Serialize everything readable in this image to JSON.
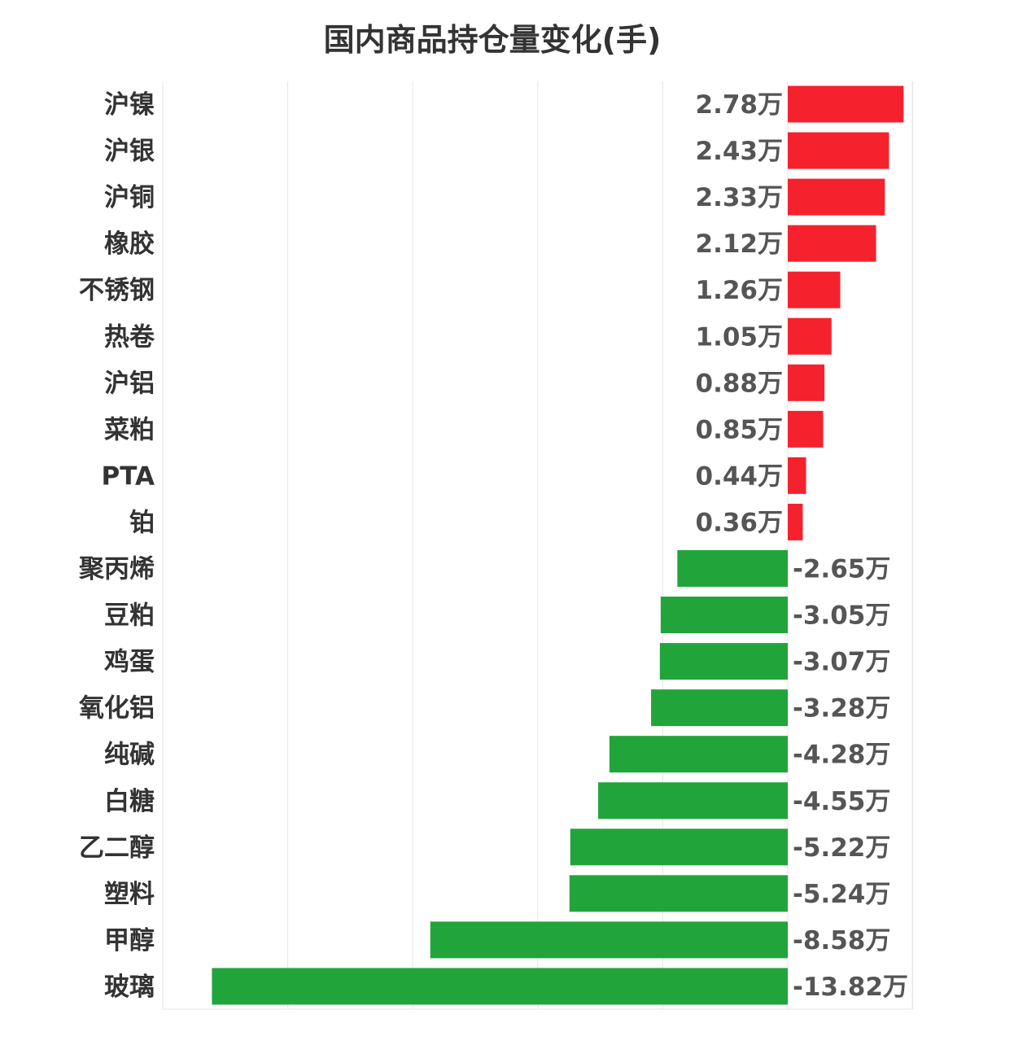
{
  "chart_data": {
    "type": "bar",
    "orientation": "horizontal",
    "title": "国内商品持仓量变化(手)",
    "unit_suffix": "万",
    "categories": [
      "沪镍",
      "沪银",
      "沪铜",
      "橡胶",
      "不锈钢",
      "热卷",
      "沪铝",
      "菜粕",
      "PTA",
      "铂",
      "聚丙烯",
      "豆粕",
      "鸡蛋",
      "氧化铝",
      "纯碱",
      "白糖",
      "乙二醇",
      "塑料",
      "甲醇",
      "玻璃"
    ],
    "values": [
      2.78,
      2.43,
      2.33,
      2.12,
      1.26,
      1.05,
      0.88,
      0.85,
      0.44,
      0.36,
      -2.65,
      -3.05,
      -3.07,
      -3.28,
      -4.28,
      -4.55,
      -5.22,
      -5.24,
      -8.58,
      -13.82
    ],
    "value_labels": [
      "2.78万",
      "2.43万",
      "2.33万",
      "2.12万",
      "1.26万",
      "1.05万",
      "0.88万",
      "0.85万",
      "0.44万",
      "0.36万",
      "-2.65万",
      "-3.05万",
      "-3.07万",
      "-3.28万",
      "-4.28万",
      "-4.55万",
      "-5.22万",
      "-5.24万",
      "-8.58万",
      "-13.82万"
    ],
    "xlim": [
      -15,
      3
    ],
    "grid": true,
    "colors": {
      "positive": "#f5222d",
      "negative": "#21a53a",
      "grid": "#e6e6e6"
    }
  }
}
